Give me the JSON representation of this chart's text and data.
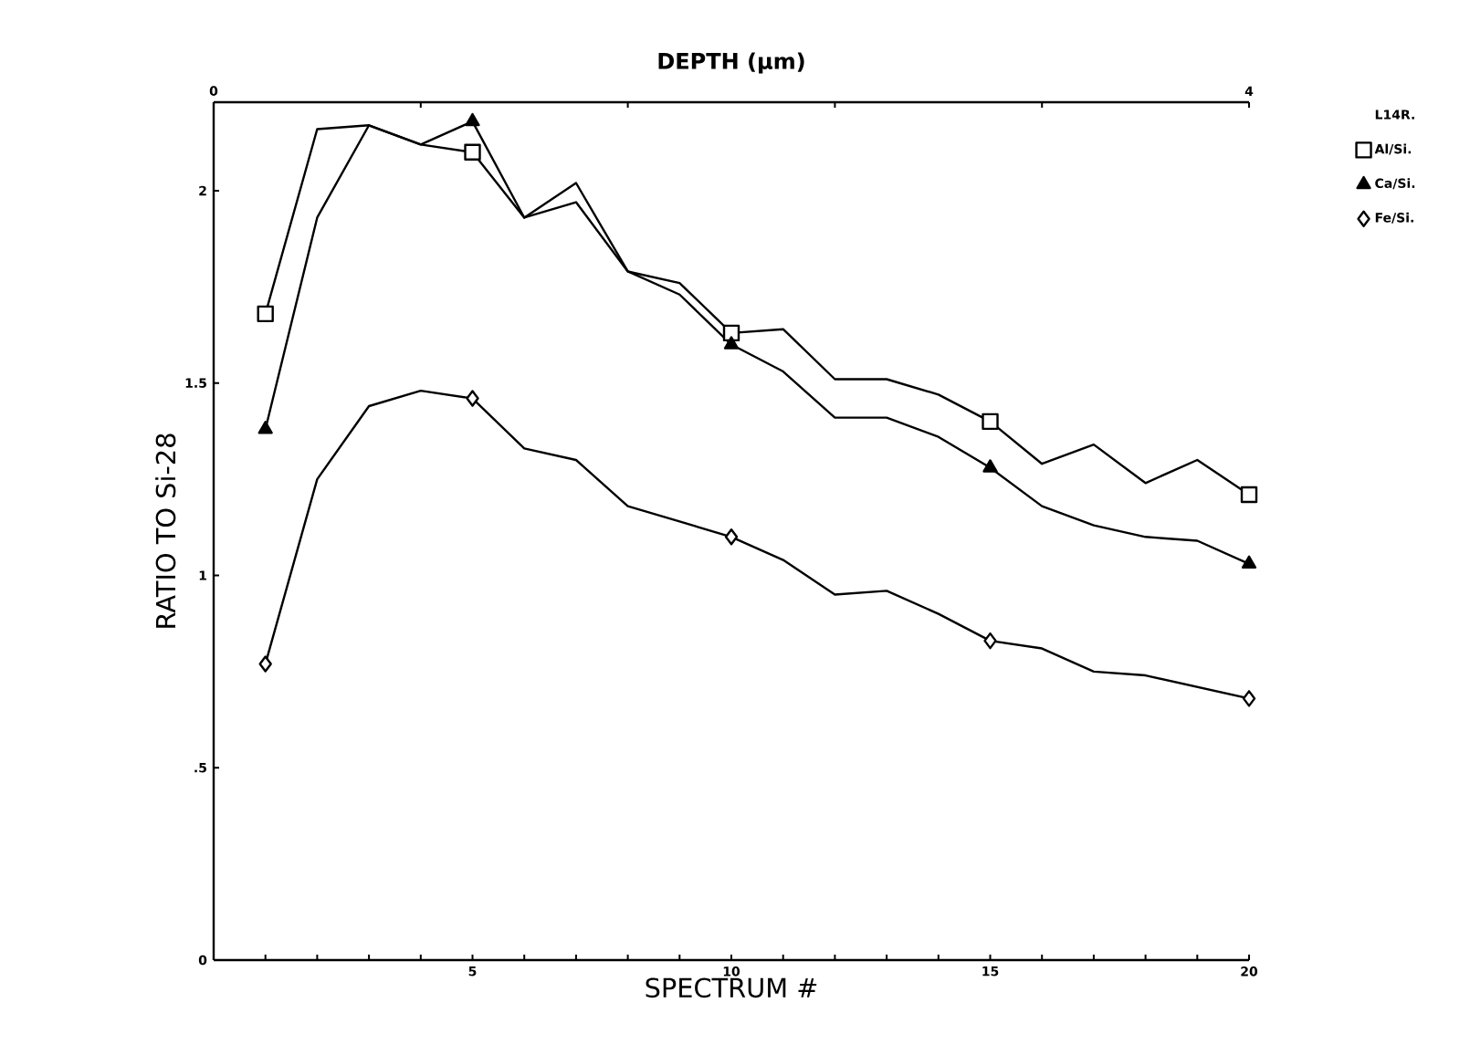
{
  "chart_data": {
    "type": "line",
    "x2label": "DEPTH (µm)",
    "xlabel": "SPECTRUM #",
    "ylabel": "RATIO TO Si-28",
    "legend_title": "L14R.",
    "x": [
      1,
      2,
      3,
      4,
      5,
      6,
      7,
      8,
      9,
      10,
      11,
      12,
      13,
      14,
      15,
      16,
      17,
      18,
      19,
      20
    ],
    "series": [
      {
        "color": "#000000",
        "values": [
          1.68,
          2.16,
          2.17,
          2.12,
          2.1,
          1.93,
          2.02,
          1.79,
          1.76,
          1.63,
          1.64,
          1.51,
          1.51,
          1.47,
          1.4,
          1.29,
          1.34,
          1.24,
          1.3,
          1.21
        ]
      },
      {
        "color": "#000000",
        "values": [
          1.38,
          1.93,
          2.17,
          2.12,
          2.18,
          1.93,
          1.97,
          1.79,
          1.73,
          1.6,
          1.53,
          1.41,
          1.41,
          1.36,
          1.28,
          1.18,
          1.13,
          1.1,
          1.09,
          1.03
        ]
      },
      {
        "color": "#000000",
        "values": [
          0.77,
          1.25,
          1.44,
          1.48,
          1.46,
          1.33,
          1.3,
          1.18,
          1.14,
          1.1,
          1.04,
          0.95,
          0.96,
          0.9,
          0.83,
          0.81,
          0.75,
          0.74,
          0.71,
          0.68
        ]
      },
      {
        "type": "scatter",
        "name": "Al/Si.",
        "color": "#000000",
        "marker": "square",
        "x": [
          1,
          5,
          10,
          15,
          20
        ],
        "values": [
          1.68,
          2.1,
          1.63,
          1.4,
          1.21
        ]
      },
      {
        "type": "scatter",
        "name": "Ca/Si.",
        "color": "#000000",
        "marker": "triangle",
        "x": [
          1,
          5,
          10,
          15,
          20
        ],
        "values": [
          1.38,
          2.18,
          1.6,
          1.28,
          1.03
        ]
      },
      {
        "type": "scatter",
        "name": "Fe/Si.",
        "color": "#000000",
        "marker": "diamond",
        "x": [
          1,
          5,
          10,
          15,
          20
        ],
        "values": [
          0.77,
          1.46,
          1.1,
          0.83,
          0.68
        ]
      }
    ],
    "xlim": [
      0,
      20
    ],
    "xticks": [
      {
        "value": 1,
        "label": null
      },
      {
        "value": 2,
        "label": null
      },
      {
        "value": 3,
        "label": null
      },
      {
        "value": 4,
        "label": null
      },
      5,
      {
        "value": 6,
        "label": null
      },
      {
        "value": 7,
        "label": null
      },
      {
        "value": 8,
        "label": null
      },
      {
        "value": 9,
        "label": null
      },
      10,
      {
        "value": 11,
        "label": null
      },
      {
        "value": 12,
        "label": null
      },
      {
        "value": 13,
        "label": null
      },
      {
        "value": 14,
        "label": null
      },
      15,
      {
        "value": 16,
        "label": null
      },
      {
        "value": 17,
        "label": null
      },
      {
        "value": 18,
        "label": null
      },
      {
        "value": 19,
        "label": null
      },
      20
    ],
    "x2lim": [
      0,
      4
    ],
    "x2ticks": [
      0,
      {
        "value": 0.8,
        "label": null
      },
      {
        "value": 1.6,
        "label": null
      },
      {
        "value": 2.4,
        "label": null
      },
      {
        "value": 3.2,
        "label": null
      },
      4
    ],
    "ylim": [
      0,
      2.23
    ],
    "yticks": [
      0,
      {
        "value": 0.5,
        "label": ".5"
      },
      1,
      1.5,
      2
    ],
    "legend": "right",
    "line_style": "solid"
  }
}
